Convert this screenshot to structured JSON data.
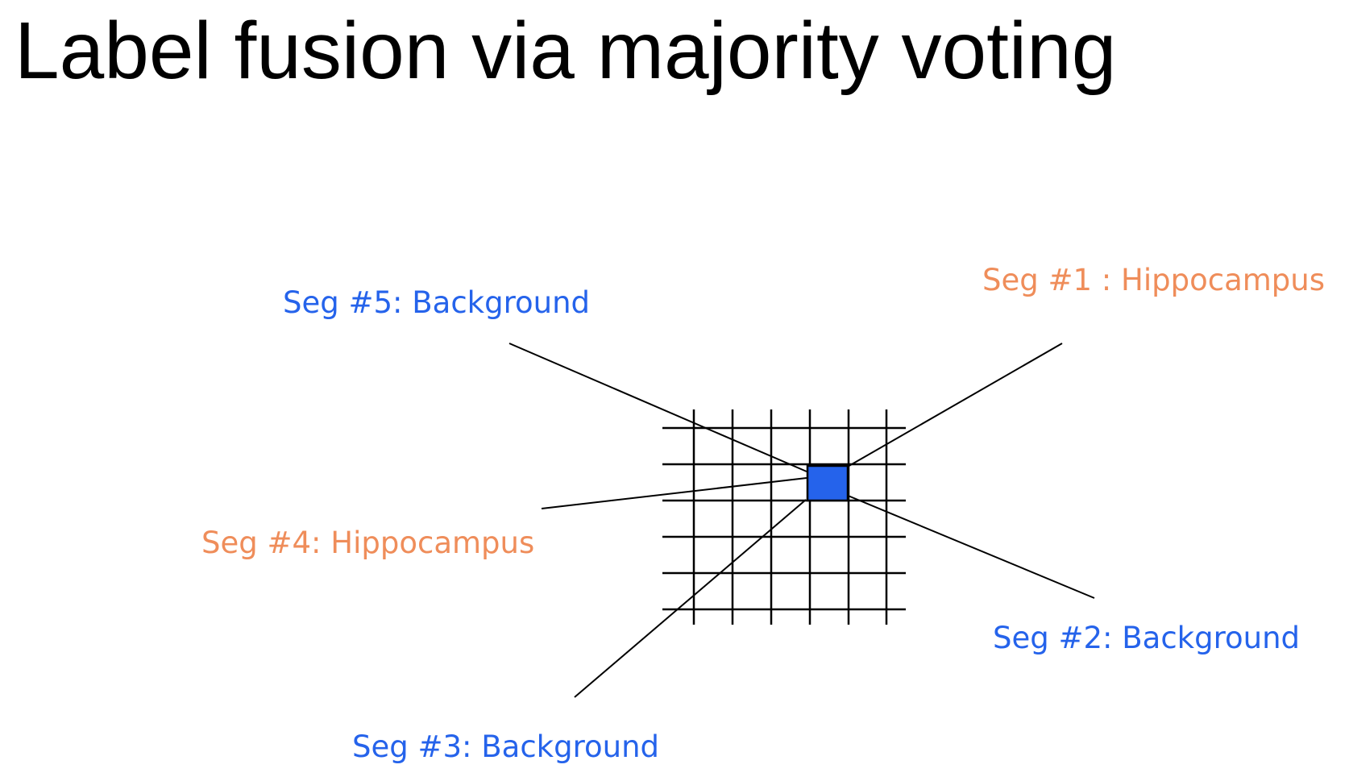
{
  "title": "Label fusion via majority voting",
  "colors": {
    "background_label": "#2563eb",
    "hippocampus_label": "#ef8d5a",
    "grid_lines": "#000000",
    "voxel_fill": "#2563eb"
  },
  "segmentations": [
    {
      "label": "Seg #1 : Hippocampus",
      "vote": "Hippocampus"
    },
    {
      "label": "Seg #2: Background",
      "vote": "Background"
    },
    {
      "label": "Seg #3: Background",
      "vote": "Background"
    },
    {
      "label": "Seg #4: Hippocampus",
      "vote": "Hippocampus"
    },
    {
      "label": "Seg #5: Background",
      "vote": "Background"
    }
  ],
  "voxel": {
    "fused_label": "Background"
  }
}
